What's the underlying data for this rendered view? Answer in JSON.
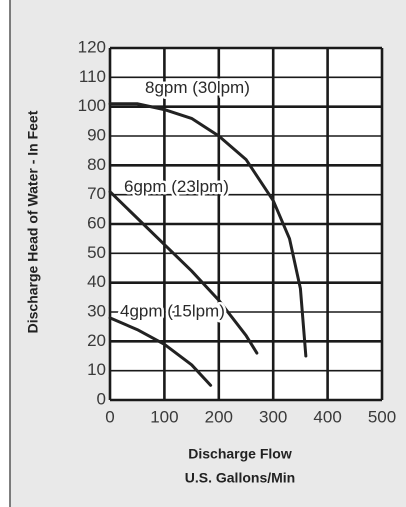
{
  "chart_data": {
    "type": "line",
    "ylabel": "Discharge Head of Water - In Feet",
    "xlabel": [
      "Discharge Flow",
      "U.S. Gallons/Min"
    ],
    "xlim": [
      0,
      500
    ],
    "xticks": [
      0,
      100,
      200,
      300,
      400,
      500
    ],
    "ylim": [
      0,
      120
    ],
    "yticks": [
      0,
      10,
      20,
      30,
      40,
      50,
      60,
      70,
      80,
      90,
      100,
      110,
      120
    ],
    "grid": true,
    "series": [
      {
        "name": "8gpm (30lpm)",
        "color": "#222222",
        "x": [
          0,
          50,
          100,
          150,
          200,
          250,
          300,
          330,
          350,
          360
        ],
        "values": [
          101,
          101,
          99,
          96,
          90,
          82,
          68,
          55,
          38,
          15
        ]
      },
      {
        "name": "6gpm (23lpm)",
        "color": "#222222",
        "x": [
          0,
          50,
          100,
          150,
          200,
          250,
          270
        ],
        "values": [
          71,
          62,
          53,
          44,
          34,
          22,
          16
        ]
      },
      {
        "name": "4gpm (15lpm)",
        "color": "#222222",
        "x": [
          0,
          50,
          100,
          150,
          185
        ],
        "values": [
          28,
          24,
          19,
          12,
          5
        ]
      }
    ]
  }
}
